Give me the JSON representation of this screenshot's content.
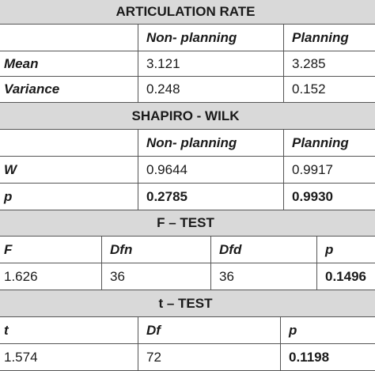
{
  "articulation": {
    "title": "ARTICULATION RATE",
    "headers": [
      "Non- planning",
      "Planning"
    ],
    "rows": [
      {
        "label": "Mean",
        "values": [
          "3.121",
          "3.285"
        ]
      },
      {
        "label": "Variance",
        "values": [
          "0.248",
          "0.152"
        ]
      }
    ]
  },
  "shapiro": {
    "title": "SHAPIRO - WILK",
    "headers": [
      "Non- planning",
      "Planning"
    ],
    "rows": [
      {
        "label": "W",
        "values": [
          "0.9644",
          "0.9917"
        ]
      },
      {
        "label": "p",
        "values": [
          "0.2785",
          "0.9930"
        ]
      }
    ]
  },
  "ftest": {
    "title": "F – TEST",
    "headers": [
      "F",
      "Dfn",
      "Dfd",
      "p"
    ],
    "values": [
      "1.626",
      "36",
      "36",
      "0.1496"
    ]
  },
  "ttest": {
    "title": "t – TEST",
    "headers": [
      "t",
      "Df",
      "p"
    ],
    "values": [
      "1.574",
      "72",
      "0.1198"
    ]
  }
}
